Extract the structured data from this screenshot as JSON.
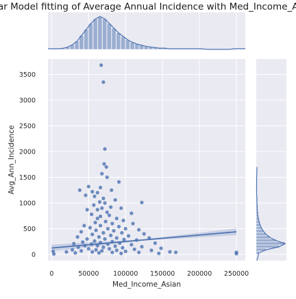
{
  "chart_data": {
    "type": "scatter",
    "title": "Linear Model fitting of Average Annual Incidence with Med_Income_Asian",
    "xlabel": "Med_Income_Asian",
    "ylabel": "Avg_Ann_Incidence",
    "xlim": [
      -5000,
      262000
    ],
    "ylim": [
      -120,
      3800
    ],
    "xticks": [
      0,
      50000,
      100000,
      150000,
      200000,
      250000
    ],
    "yticks": [
      0,
      500,
      1000,
      1500,
      2000,
      2500,
      3000,
      3500
    ],
    "grid": true,
    "style": "seaborn-darkgrid jointplot with marginal histograms and KDE",
    "colors": {
      "primary": "#4c72b0",
      "background": "#eaeaf2",
      "gridline": "#ffffff"
    },
    "regression": {
      "x": [
        0,
        250000
      ],
      "y": [
        125,
        440
      ]
    },
    "points": [
      [
        67000,
        3680
      ],
      [
        70000,
        3350
      ],
      [
        72000,
        2050
      ],
      [
        71000,
        1760
      ],
      [
        74000,
        1700
      ],
      [
        68000,
        1570
      ],
      [
        75000,
        1500
      ],
      [
        91000,
        1410
      ],
      [
        66000,
        1300
      ],
      [
        50000,
        1320
      ],
      [
        38000,
        1250
      ],
      [
        81000,
        1250
      ],
      [
        55000,
        1220
      ],
      [
        62000,
        1200
      ],
      [
        46000,
        1150
      ],
      [
        58000,
        1130
      ],
      [
        70000,
        1090
      ],
      [
        86000,
        1060
      ],
      [
        65000,
        1020
      ],
      [
        72000,
        1000
      ],
      [
        122000,
        1010
      ],
      [
        57000,
        960
      ],
      [
        80000,
        920
      ],
      [
        94000,
        900
      ],
      [
        68000,
        900
      ],
      [
        62000,
        870
      ],
      [
        75000,
        820
      ],
      [
        48000,
        870
      ],
      [
        108000,
        800
      ],
      [
        54000,
        780
      ],
      [
        78000,
        760
      ],
      [
        66000,
        740
      ],
      [
        62000,
        700
      ],
      [
        88000,
        700
      ],
      [
        97000,
        660
      ],
      [
        73000,
        640
      ],
      [
        59000,
        620
      ],
      [
        82000,
        600
      ],
      [
        110000,
        600
      ],
      [
        44000,
        560
      ],
      [
        66000,
        560
      ],
      [
        91000,
        540
      ],
      [
        52000,
        520
      ],
      [
        76000,
        500
      ],
      [
        100000,
        500
      ],
      [
        118000,
        480
      ],
      [
        60000,
        470
      ],
      [
        84000,
        460
      ],
      [
        40000,
        440
      ],
      [
        70000,
        420
      ],
      [
        95000,
        420
      ],
      [
        125000,
        400
      ],
      [
        55000,
        390
      ],
      [
        80000,
        370
      ],
      [
        104000,
        360
      ],
      [
        35000,
        340
      ],
      [
        64000,
        340
      ],
      [
        88000,
        320
      ],
      [
        132000,
        320
      ],
      [
        48000,
        300
      ],
      [
        72000,
        300
      ],
      [
        98000,
        290
      ],
      [
        115000,
        280
      ],
      [
        58000,
        260
      ],
      [
        82000,
        250
      ],
      [
        42000,
        240
      ],
      [
        66000,
        230
      ],
      [
        92000,
        220
      ],
      [
        140000,
        220
      ],
      [
        30000,
        210
      ],
      [
        54000,
        200
      ],
      [
        76000,
        200
      ],
      [
        108000,
        190
      ],
      [
        45000,
        170
      ],
      [
        62000,
        170
      ],
      [
        86000,
        160
      ],
      [
        122000,
        150
      ],
      [
        36000,
        140
      ],
      [
        70000,
        140
      ],
      [
        96000,
        130
      ],
      [
        148000,
        120
      ],
      [
        50000,
        110
      ],
      [
        78000,
        110
      ],
      [
        112000,
        100
      ],
      [
        28000,
        90
      ],
      [
        60000,
        90
      ],
      [
        88000,
        80
      ],
      [
        135000,
        80
      ],
      [
        40000,
        70
      ],
      [
        68000,
        70
      ],
      [
        100000,
        60
      ],
      [
        160000,
        50
      ],
      [
        20000,
        50
      ],
      [
        55000,
        50
      ],
      [
        82000,
        40
      ],
      [
        118000,
        40
      ],
      [
        168000,
        40
      ],
      [
        32000,
        30
      ],
      [
        64000,
        30
      ],
      [
        94000,
        20
      ],
      [
        145000,
        20
      ],
      [
        2000,
        60
      ],
      [
        3000,
        10
      ],
      [
        250000,
        40
      ],
      [
        250000,
        15
      ]
    ],
    "x_hist": {
      "bins_start": 0,
      "bin_width": 6250,
      "counts": [
        1,
        1,
        2,
        4,
        8,
        14,
        24,
        34,
        44,
        52,
        56,
        52,
        44,
        36,
        28,
        22,
        16,
        12,
        9,
        7,
        5,
        4,
        3,
        2,
        2,
        1,
        1,
        1,
        1,
        1,
        1,
        1,
        1,
        0,
        0,
        0,
        0,
        0,
        0,
        1
      ]
    },
    "y_hist": {
      "bins_start": 0,
      "bin_width": 60,
      "counts": [
        8,
        30,
        70,
        88,
        60,
        42,
        30,
        22,
        16,
        12,
        9,
        7,
        5,
        4,
        3,
        3,
        2,
        2,
        2,
        1,
        1,
        1,
        1,
        1
      ]
    }
  }
}
